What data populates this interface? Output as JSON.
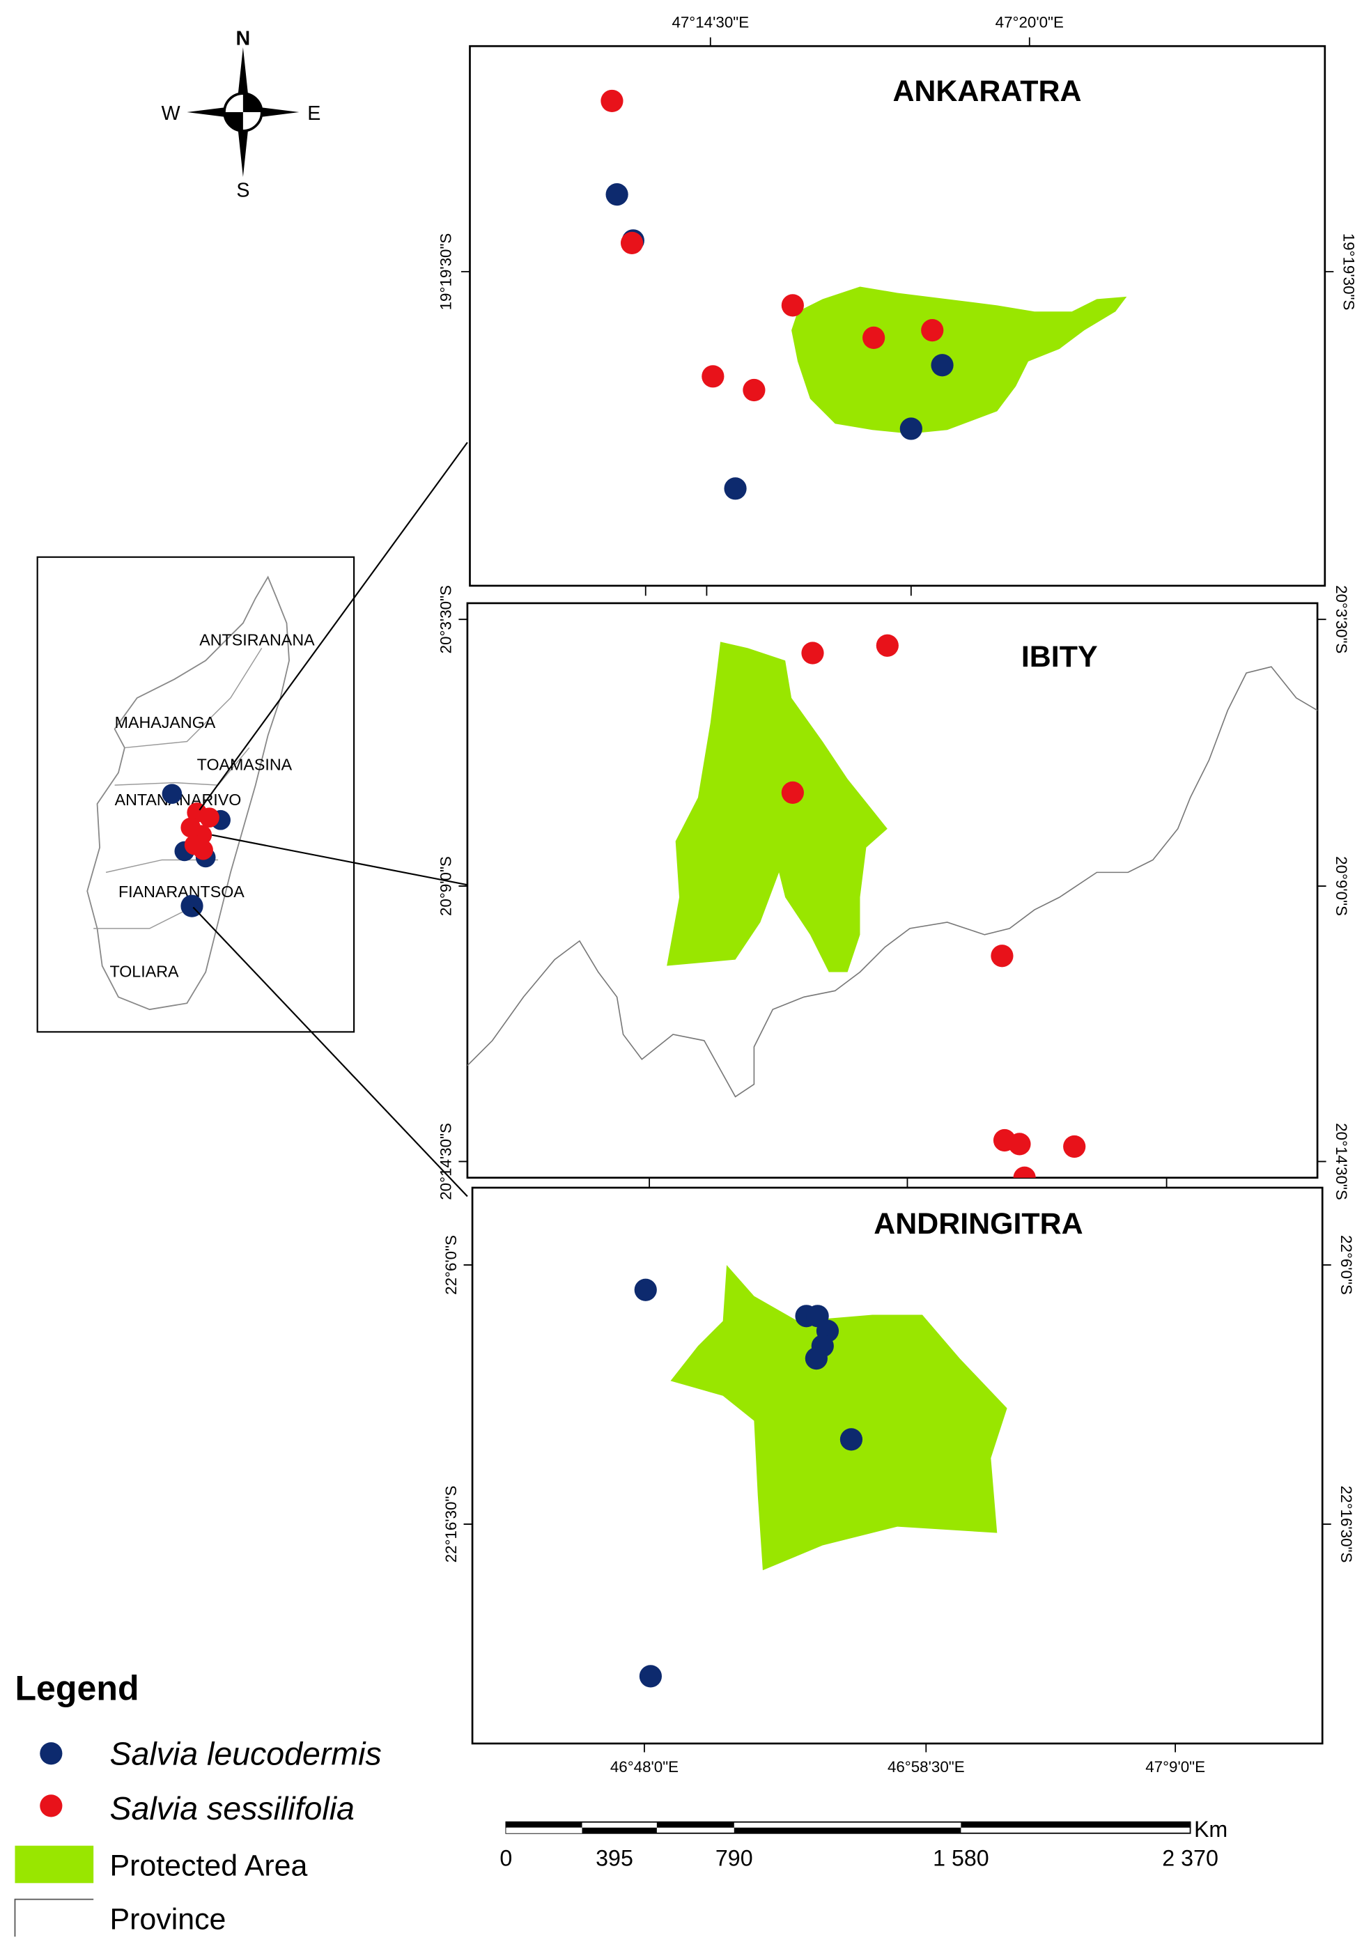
{
  "compass": {
    "north": "N",
    "south": "S",
    "west": "W",
    "east": "E"
  },
  "inset": {
    "provinces": [
      "ANTSIRANANA",
      "MAHAJANGA",
      "TOAMASINA",
      "ANTANANARIVO",
      "FIANARANTSOA",
      "TOLIARA"
    ]
  },
  "panels": [
    {
      "title": "ANKARATRA",
      "top_labels": [
        "47°14'30\"E",
        "47°20'0\"E"
      ],
      "side_labels": [
        "19°19'30\"S"
      ]
    },
    {
      "title": "IBITY",
      "side_labels": [
        "20°3'30\"S",
        "20°9'0\"S",
        "20°14'30\"S"
      ]
    },
    {
      "title": "ANDRINGITRA",
      "side_labels": [
        "22°6'0\"S",
        "22°16'30\"S"
      ],
      "bottom_labels": [
        "46°48'0\"E",
        "46°58'30\"E",
        "47°9'0\"E"
      ]
    }
  ],
  "legend": {
    "title": "Legend",
    "items": [
      "Salvia leucodermis",
      "Salvia sessilifolia",
      "Protected Area",
      "Province"
    ]
  },
  "scale_bar": {
    "unit": "Km",
    "labels": [
      "0",
      "395",
      "790",
      "1 580",
      "2 370"
    ]
  }
}
